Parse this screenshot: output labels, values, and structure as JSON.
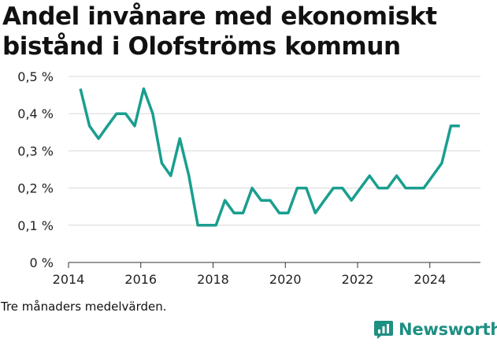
{
  "title": "Andel invånare med ekonomiskt bistånd i Olofströms kommun",
  "caption": "Tre månaders medelvärden.",
  "brand": {
    "name": "Newsworthy",
    "icon": "newsworthy-logo-icon",
    "color": "#1e8f83"
  },
  "colors": {
    "line": "#1a9e8f",
    "grid": "#d9d9d9",
    "axis": "#333333"
  },
  "chart_data": {
    "type": "line",
    "title": "Andel invånare med ekonomiskt bistånd i Olofströms kommun",
    "xlabel": "",
    "ylabel": "",
    "xlim": [
      2014,
      2025.4
    ],
    "ylim": [
      0,
      0.5
    ],
    "x_ticks": [
      2014,
      2016,
      2018,
      2020,
      2022,
      2024
    ],
    "x_tick_labels": [
      "2014",
      "2016",
      "2018",
      "2020",
      "2022",
      "2024"
    ],
    "y_ticks": [
      0,
      0.1,
      0.2,
      0.3,
      0.4,
      0.5
    ],
    "y_tick_labels": [
      "0 %",
      "0,1 %",
      "0,2 %",
      "0,3 %",
      "0,4 %",
      "0,5 %"
    ],
    "grid": "horizontal",
    "series": [
      {
        "values": [
          [
            2014.33,
            0.467
          ],
          [
            2014.58,
            0.367
          ],
          [
            2014.83,
            0.333
          ],
          [
            2015.08,
            0.367
          ],
          [
            2015.33,
            0.4
          ],
          [
            2015.58,
            0.4
          ],
          [
            2015.83,
            0.367
          ],
          [
            2016.08,
            0.467
          ],
          [
            2016.33,
            0.4
          ],
          [
            2016.58,
            0.267
          ],
          [
            2016.83,
            0.233
          ],
          [
            2017.08,
            0.333
          ],
          [
            2017.33,
            0.233
          ],
          [
            2017.58,
            0.1
          ],
          [
            2017.83,
            0.1
          ],
          [
            2018.08,
            0.1
          ],
          [
            2018.33,
            0.167
          ],
          [
            2018.58,
            0.133
          ],
          [
            2018.83,
            0.133
          ],
          [
            2019.08,
            0.2
          ],
          [
            2019.33,
            0.167
          ],
          [
            2019.58,
            0.167
          ],
          [
            2019.83,
            0.133
          ],
          [
            2020.08,
            0.133
          ],
          [
            2020.33,
            0.2
          ],
          [
            2020.58,
            0.2
          ],
          [
            2020.83,
            0.133
          ],
          [
            2021.08,
            0.167
          ],
          [
            2021.33,
            0.2
          ],
          [
            2021.58,
            0.2
          ],
          [
            2021.83,
            0.167
          ],
          [
            2022.08,
            0.2
          ],
          [
            2022.33,
            0.233
          ],
          [
            2022.58,
            0.2
          ],
          [
            2022.83,
            0.2
          ],
          [
            2023.08,
            0.233
          ],
          [
            2023.33,
            0.2
          ],
          [
            2023.58,
            0.2
          ],
          [
            2023.83,
            0.2
          ],
          [
            2024.08,
            0.233
          ],
          [
            2024.33,
            0.267
          ],
          [
            2024.58,
            0.367
          ],
          [
            2024.83,
            0.367
          ]
        ]
      }
    ]
  }
}
